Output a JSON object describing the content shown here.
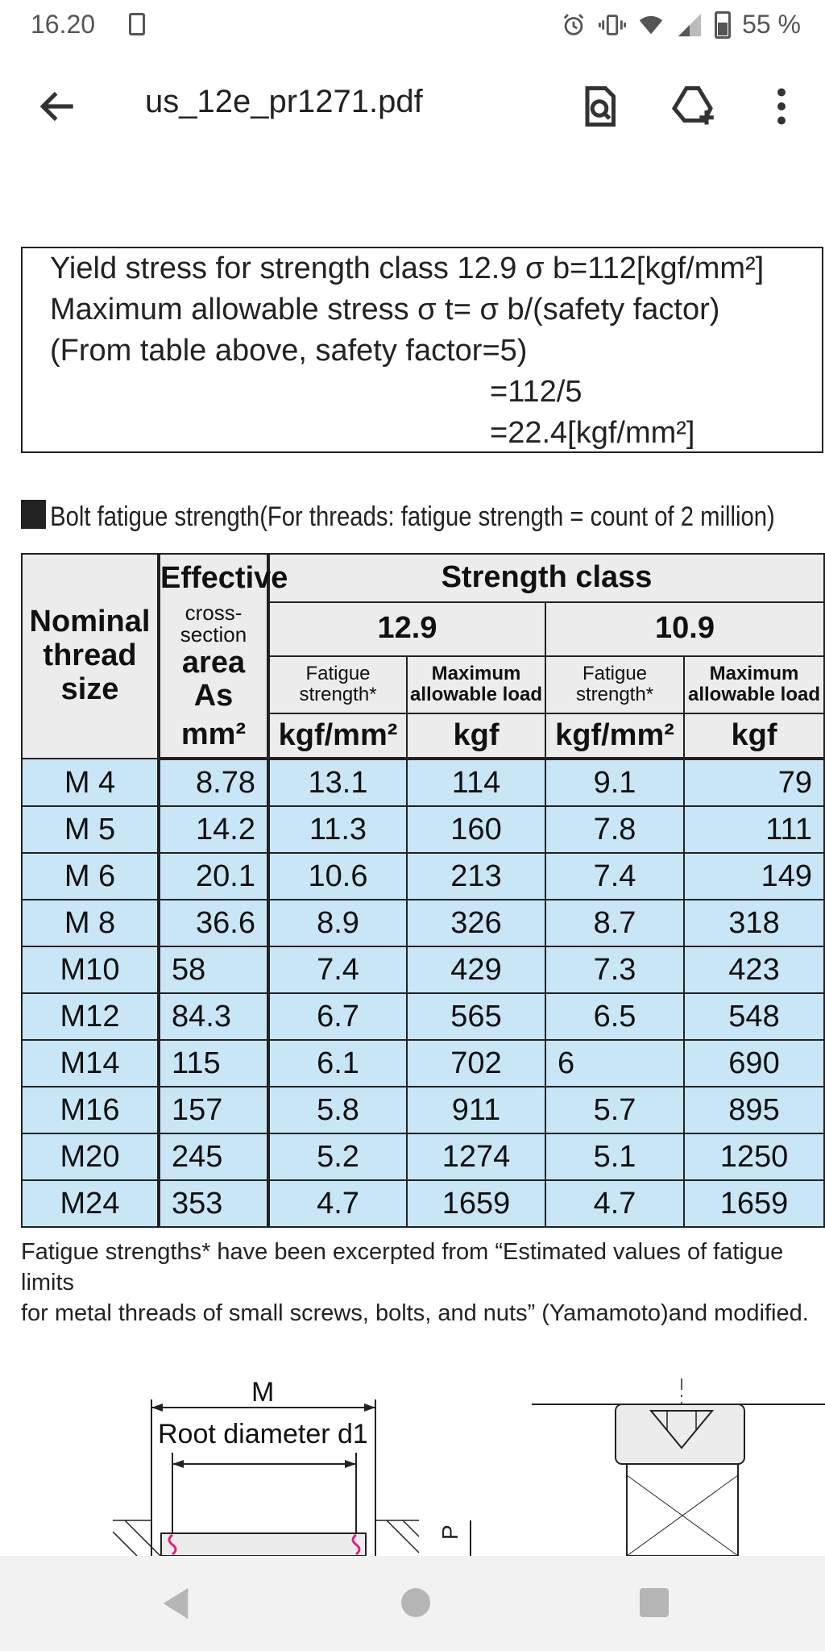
{
  "status_bar": {
    "time": "16.20",
    "battery": "55 %",
    "icons": [
      "screenshot-icon",
      "alarm-icon",
      "vibrate-icon",
      "wifi-icon",
      "signal-icon",
      "battery-icon"
    ]
  },
  "toolbar": {
    "title": "us_12e_pr1271.pdf",
    "icons": [
      "back-arrow-icon",
      "find-in-page-icon",
      "add-to-drive-icon",
      "more-vert-icon"
    ]
  },
  "stress_box": {
    "line1": "Yield stress for strength class 12.9 σ b=112[kgf/mm²]",
    "line2": "Maximum allowable stress σ t= σ b/(safety factor)",
    "line3": "(From table above, safety factor=5)",
    "line4": "=112/5",
    "line5": "=22.4[kgf/mm²]"
  },
  "section_title": "Bolt fatigue strength(For threads: fatigue strength = count of 2 million)",
  "table": {
    "headers": {
      "nominal": "Nominal thread size",
      "effective_1": "Effective",
      "effective_2": "cross-section",
      "effective_3": "area",
      "effective_4": "As",
      "effective_unit": "mm²",
      "strength_class": "Strength class",
      "class_a": "12.9",
      "class_b": "10.9",
      "fatigue": "Fatigue strength*",
      "max_load": "Maximum allowable load",
      "unit_stress": "kgf/mm²",
      "unit_load": "kgf"
    },
    "rows": [
      {
        "size": "M  4",
        "area": "8.78",
        "f129": "13.1",
        "l129": "114",
        "f109": "9.1",
        "l109": "79"
      },
      {
        "size": "M  5",
        "area": "14.2",
        "f129": "11.3",
        "l129": "160",
        "f109": "7.8",
        "l109": "111"
      },
      {
        "size": "M  6",
        "area": "20.1",
        "f129": "10.6",
        "l129": "213",
        "f109": "7.4",
        "l109": "149"
      },
      {
        "size": "M  8",
        "area": "36.6",
        "f129": "8.9",
        "l129": "326",
        "f109": "8.7",
        "l109": "318"
      },
      {
        "size": "M10",
        "area": "58",
        "f129": "7.4",
        "l129": "429",
        "f109": "7.3",
        "l109": "423"
      },
      {
        "size": "M12",
        "area": "84.3",
        "f129": "6.7",
        "l129": "565",
        "f109": "6.5",
        "l109": "548"
      },
      {
        "size": "M14",
        "area": "115",
        "f129": "6.1",
        "l129": "702",
        "f109": "6",
        "l109": "690"
      },
      {
        "size": "M16",
        "area": "157",
        "f129": "5.8",
        "l129": "911",
        "f109": "5.7",
        "l109": "895"
      },
      {
        "size": "M20",
        "area": "245",
        "f129": "5.2",
        "l129": "1274",
        "f109": "5.1",
        "l109": "1250"
      },
      {
        "size": "M24",
        "area": "353",
        "f129": "4.7",
        "l129": "1659",
        "f109": "4.7",
        "l109": "1659"
      }
    ]
  },
  "footnote": {
    "line1": "Fatigue strengths* have been excerpted from “Estimated values of fatigue limits",
    "line2": "for metal threads of small screws, bolts, and nuts” (Yamamoto)and modified."
  },
  "diagram": {
    "label_m": "M",
    "label_root": "Root diameter d1",
    "label_p": "P"
  },
  "nav_bar": {
    "icons": [
      "nav-back-icon",
      "nav-home-icon",
      "nav-recents-icon"
    ]
  },
  "colors": {
    "table_body_bg": "#c9e6f6",
    "table_header_bg": "#ececec",
    "ink": "#222222"
  }
}
